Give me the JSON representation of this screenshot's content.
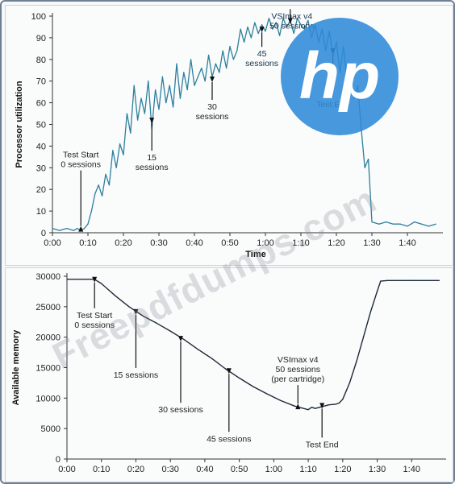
{
  "logo": {
    "text": "hp",
    "color": "#2f8ad8"
  },
  "watermark": "Freepdfdumps.com",
  "chart_data": [
    {
      "type": "line",
      "ylabel": "Processor utilization",
      "xlabel": "Time",
      "ylim": [
        0,
        100
      ],
      "yticks": [
        0,
        10,
        20,
        30,
        40,
        50,
        60,
        70,
        80,
        90,
        100
      ],
      "xlim_minutes": [
        0,
        110
      ],
      "xticks": [
        "0:00",
        "0:10",
        "0:20",
        "0:30",
        "0:40",
        "0:50",
        "1:00",
        "1:10",
        "1:20",
        "1:30",
        "1:40"
      ],
      "line_color": "#2d7f9e",
      "series": [
        {
          "x_minutes": [
            0,
            2,
            4,
            6,
            7,
            8,
            9,
            10,
            11,
            12,
            13,
            14,
            15,
            16,
            17,
            18,
            19,
            20,
            21,
            22,
            23,
            24,
            25,
            26,
            27,
            28,
            29,
            30,
            31,
            32,
            33,
            34,
            35,
            36,
            37,
            38,
            39,
            40,
            41,
            42,
            43,
            44,
            45,
            46,
            47,
            48,
            49,
            50,
            51,
            52,
            53,
            54,
            55,
            56,
            57,
            58,
            59,
            60,
            61,
            62,
            63,
            64,
            65,
            66,
            67,
            68,
            69,
            70,
            71,
            72,
            73,
            74,
            75,
            76,
            77,
            78,
            79,
            80,
            81,
            82,
            83,
            84,
            85,
            86,
            87,
            88,
            89,
            90,
            92,
            94,
            96,
            98,
            100,
            102,
            104,
            106,
            108
          ],
          "values": [
            2,
            1,
            2,
            1,
            2,
            1,
            2,
            4,
            10,
            18,
            22,
            17,
            27,
            22,
            38,
            30,
            41,
            36,
            55,
            46,
            68,
            52,
            62,
            55,
            70,
            48,
            66,
            57,
            72,
            60,
            68,
            58,
            78,
            62,
            74,
            66,
            80,
            68,
            72,
            76,
            70,
            82,
            72,
            78,
            74,
            84,
            76,
            86,
            80,
            84,
            94,
            88,
            95,
            90,
            97,
            92,
            96,
            93,
            99,
            94,
            97,
            91,
            99,
            95,
            98,
            92,
            99,
            96,
            94,
            98,
            90,
            96,
            88,
            94,
            84,
            93,
            82,
            88,
            74,
            86,
            70,
            78,
            62,
            68,
            48,
            30,
            34,
            5,
            4,
            5,
            4,
            4,
            3,
            5,
            4,
            3,
            4
          ]
        }
      ],
      "annotations": [
        {
          "lines": [
            "Test Start",
            "0 sessions"
          ],
          "x_minutes": 8,
          "y_value": 2
        },
        {
          "lines": [
            "15",
            "sessions"
          ],
          "x_minutes": 28,
          "y_value": 52
        },
        {
          "lines": [
            "30",
            "sessions"
          ],
          "x_minutes": 45,
          "y_value": 71
        },
        {
          "lines": [
            "45",
            "sessions"
          ],
          "x_minutes": 59,
          "y_value": 94
        },
        {
          "lines": [
            "VSImax v4",
            "50 sessions"
          ],
          "x_minutes": 67,
          "y_value": 98
        },
        {
          "lines": [
            "Test End"
          ],
          "x_minutes": 79,
          "y_value": 84
        }
      ]
    },
    {
      "type": "line",
      "ylabel": "Available memory",
      "ylim": [
        0,
        30000
      ],
      "yticks": [
        0,
        5000,
        10000,
        15000,
        20000,
        25000,
        30000
      ],
      "xlim_minutes": [
        0,
        110
      ],
      "xticks": [
        "0:00",
        "0:10",
        "0:20",
        "0:30",
        "0:40",
        "0:50",
        "1:00",
        "1:10",
        "1:20",
        "1:30",
        "1:40"
      ],
      "line_color": "#1c2b3a",
      "series": [
        {
          "x_minutes": [
            0,
            5,
            8,
            10,
            14,
            18,
            22,
            26,
            30,
            34,
            38,
            42,
            46,
            50,
            54,
            58,
            62,
            66,
            68,
            70,
            71,
            72,
            74,
            76,
            78,
            79,
            80,
            82,
            84,
            86,
            88,
            90,
            91,
            93,
            100,
            108
          ],
          "values": [
            29500,
            29500,
            29500,
            28800,
            26800,
            25000,
            23500,
            22300,
            21000,
            19600,
            18000,
            16500,
            14800,
            13300,
            11900,
            10700,
            9600,
            8700,
            8400,
            8100,
            8500,
            8300,
            8600,
            8900,
            9000,
            9200,
            9800,
            12500,
            16000,
            20000,
            24000,
            27500,
            29200,
            29300,
            29300,
            29300
          ]
        }
      ],
      "annotations": [
        {
          "lines": [
            "Test Start",
            "0 sessions"
          ],
          "x_minutes": 8,
          "y_value": 29500
        },
        {
          "lines": [
            "15 sessions"
          ],
          "x_minutes": 20,
          "y_value": 24200
        },
        {
          "lines": [
            "30 sessions"
          ],
          "x_minutes": 33,
          "y_value": 19800
        },
        {
          "lines": [
            "45 sessions"
          ],
          "x_minutes": 47,
          "y_value": 14500
        },
        {
          "lines": [
            "VSImax v4",
            "50 sessions",
            "(per cartridge)"
          ],
          "x_minutes": 67,
          "y_value": 8700
        },
        {
          "lines": [
            "Test End"
          ],
          "x_minutes": 74,
          "y_value": 8800
        }
      ]
    }
  ]
}
